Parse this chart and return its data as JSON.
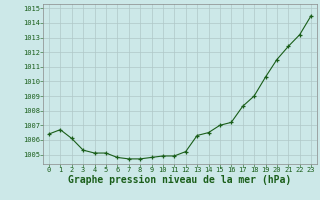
{
  "x": [
    0,
    1,
    2,
    3,
    4,
    5,
    6,
    7,
    8,
    9,
    10,
    11,
    12,
    13,
    14,
    15,
    16,
    17,
    18,
    19,
    20,
    21,
    22,
    23
  ],
  "y": [
    1006.4,
    1006.7,
    1006.1,
    1005.3,
    1005.1,
    1005.1,
    1004.8,
    1004.7,
    1004.7,
    1004.8,
    1004.9,
    1004.9,
    1005.2,
    1006.3,
    1006.5,
    1007.0,
    1007.2,
    1008.3,
    1009.0,
    1010.3,
    1011.5,
    1012.4,
    1013.2,
    1014.5
  ],
  "ylim": [
    1004.35,
    1015.3
  ],
  "yticks": [
    1005,
    1006,
    1007,
    1008,
    1009,
    1010,
    1011,
    1012,
    1013,
    1014,
    1015
  ],
  "xlim": [
    -0.5,
    23.5
  ],
  "xticks": [
    0,
    1,
    2,
    3,
    4,
    5,
    6,
    7,
    8,
    9,
    10,
    11,
    12,
    13,
    14,
    15,
    16,
    17,
    18,
    19,
    20,
    21,
    22,
    23
  ],
  "xlabel": "Graphe pression niveau de la mer (hPa)",
  "line_color": "#1a5e1a",
  "marker_color": "#1a5e1a",
  "bg_color": "#cce8e8",
  "grid_color": "#b0c8c8",
  "tick_fontsize": 5.0,
  "xlabel_fontsize": 7.0
}
